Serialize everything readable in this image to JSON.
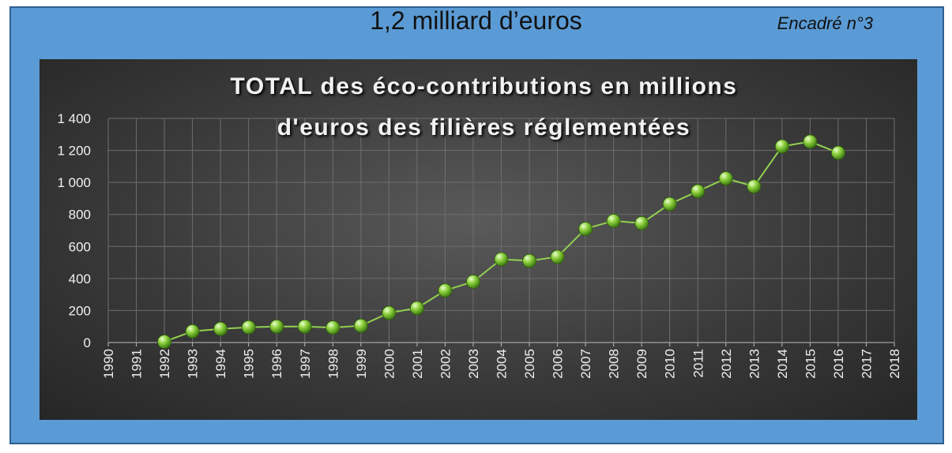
{
  "header": {
    "headline": "1,2 milliard d’euros",
    "tag": "Encadré n°3"
  },
  "colors": {
    "frame": "#5b9bd5",
    "panel": "#3a3a3a",
    "line": "#92d050",
    "grid": "#6e6e6e"
  },
  "chart_data": {
    "type": "line",
    "title_line1": "TOTAL des éco-contributions en millions",
    "title_line2": "d'euros des filières réglementées",
    "xlabel": "",
    "ylabel": "",
    "ylim": [
      0,
      1400
    ],
    "y_ticks": [
      "1 400",
      "1 200",
      "1 000",
      "800",
      "600",
      "400",
      "200",
      "0"
    ],
    "y_tick_values": [
      1400,
      1200,
      1000,
      800,
      600,
      400,
      200,
      0
    ],
    "x_ticks": [
      "1990",
      "1991",
      "1992",
      "1993",
      "1994",
      "1995",
      "1996",
      "1997",
      "1998",
      "1999",
      "2000",
      "2001",
      "2002",
      "2003",
      "2004",
      "2005",
      "2006",
      "2007",
      "2008",
      "2009",
      "2010",
      "2011",
      "2012",
      "2013",
      "2014",
      "2015",
      "2016",
      "2017",
      "2018"
    ],
    "x": [
      1992,
      1993,
      1994,
      1995,
      1996,
      1997,
      1998,
      1999,
      2000,
      2001,
      2002,
      2003,
      2004,
      2005,
      2006,
      2007,
      2008,
      2009,
      2010,
      2011,
      2012,
      2013,
      2014,
      2015,
      2016
    ],
    "values": [
      5,
      70,
      85,
      95,
      100,
      100,
      93,
      105,
      185,
      215,
      325,
      380,
      520,
      510,
      535,
      710,
      760,
      745,
      865,
      945,
      1025,
      975,
      1225,
      1255,
      1185
    ],
    "grid": true,
    "legend": "none"
  }
}
